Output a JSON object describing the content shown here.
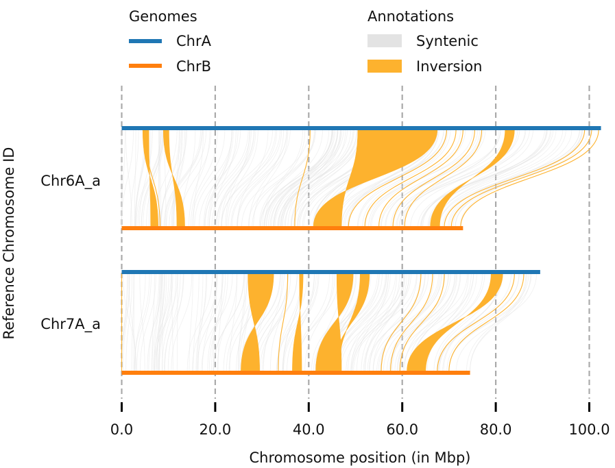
{
  "colors": {
    "chrA": "#1f77b4",
    "chrB": "#ff7f0e",
    "syntenic": "#e3e3e3",
    "inversion": "#fdb22e",
    "grid": "#aaaaaa"
  },
  "legend": {
    "genomes_title": "Genomes",
    "annotations_title": "Annotations",
    "genomes": [
      {
        "label": "ChrA",
        "color": "#1f77b4"
      },
      {
        "label": "ChrB",
        "color": "#ff7f0e"
      }
    ],
    "annotations": [
      {
        "label": "Syntenic",
        "color": "#e3e3e3"
      },
      {
        "label": "Inversion",
        "color": "#fdb22e"
      }
    ]
  },
  "chart_data": {
    "type": "synteny",
    "xlabel": "Chromosome position (in Mbp)",
    "ylabel": "Reference Chromosome ID",
    "xlim": [
      0,
      100
    ],
    "xticks": [
      0,
      20,
      40,
      60,
      80,
      100
    ],
    "xtick_labels": [
      "0.0",
      "20.0",
      "40.0",
      "60.0",
      "80.0",
      "100.0"
    ],
    "grid": "vertical dashed",
    "legend_position": "top",
    "chromosomes": [
      {
        "id": "Chr6A_a",
        "chrA_length": 102.5,
        "chrB_length": 73.0,
        "inversions": [
          {
            "a": [
              4.5,
              5.8
            ],
            "b": [
              6.2,
              7.8
            ]
          },
          {
            "a": [
              8.9,
              10.1
            ],
            "b": [
              11.8,
              13.5
            ]
          },
          {
            "a": [
              50.5,
              67.5
            ],
            "b": [
              41.0,
              47.0
            ]
          },
          {
            "a": [
              82.0,
              84.0
            ],
            "b": [
              66.0,
              68.0
            ]
          }
        ],
        "inversion_lines": [
          {
            "a": 5.0,
            "b": 8.2
          },
          {
            "a": 40.3,
            "b": 37.0
          },
          {
            "a": 69.5,
            "b": 48.5
          },
          {
            "a": 71.5,
            "b": 52.0
          },
          {
            "a": 73.0,
            "b": 55.0
          },
          {
            "a": 75.5,
            "b": 58.0
          },
          {
            "a": 77.0,
            "b": 60.5
          },
          {
            "a": 99.0,
            "b": 69.0
          },
          {
            "a": 100.5,
            "b": 70.5
          },
          {
            "a": 102.0,
            "b": 72.5
          }
        ]
      },
      {
        "id": "Chr7A_a",
        "chrA_length": 89.5,
        "chrB_length": 74.5,
        "inversions": [
          {
            "a": [
              27.0,
              32.5
            ],
            "b": [
              25.5,
              29.5
            ]
          },
          {
            "a": [
              38.0,
              38.8
            ],
            "b": [
              36.5,
              38.5
            ]
          },
          {
            "a": [
              46.0,
              49.5
            ],
            "b": [
              41.5,
              47.0
            ]
          },
          {
            "a": [
              51.0,
              53.0
            ],
            "b": [
              45.5,
              46.5
            ]
          },
          {
            "a": [
              79.0,
              81.5
            ],
            "b": [
              61.0,
              65.0
            ]
          }
        ],
        "inversion_lines": [
          {
            "a": 0.0,
            "b": 0.0
          },
          {
            "a": 35.5,
            "b": 33.5
          },
          {
            "a": 64.0,
            "b": 55.5
          },
          {
            "a": 66.5,
            "b": 57.5
          },
          {
            "a": 69.0,
            "b": 59.5
          },
          {
            "a": 84.0,
            "b": 67.5
          },
          {
            "a": 86.0,
            "b": 70.0
          }
        ]
      }
    ]
  }
}
